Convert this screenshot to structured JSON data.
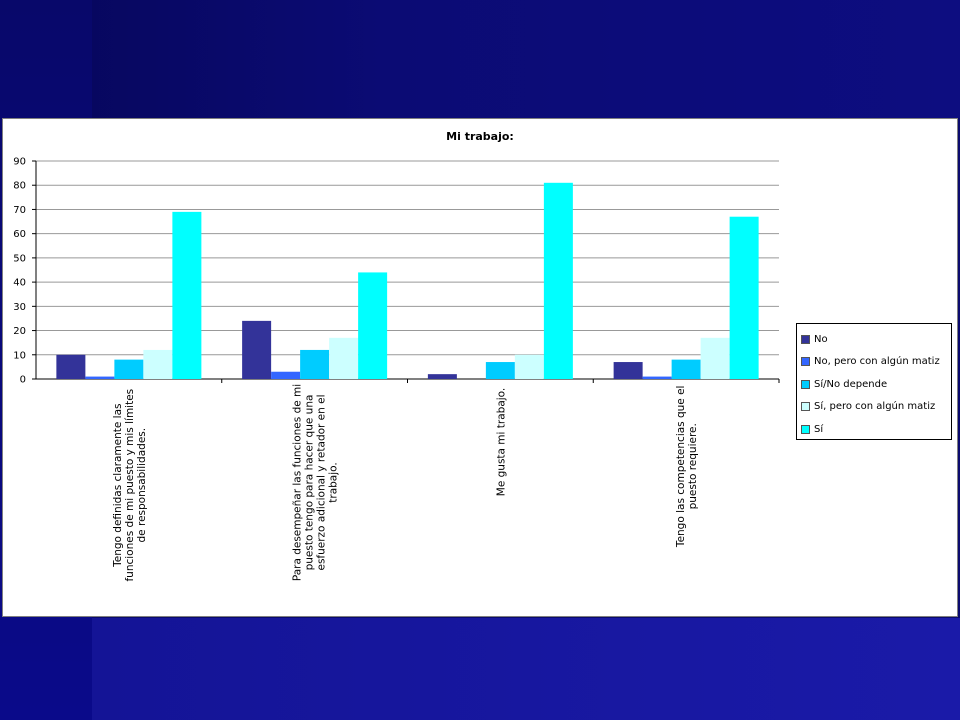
{
  "colors": {
    "no": "#333399",
    "no_matiz": "#3366ff",
    "si_no_depende": "#00ccff",
    "si_matiz": "#ccffff",
    "si": "#00ffff",
    "grid": "#999999"
  },
  "chart_data": {
    "type": "bar",
    "title": "Mi trabajo:",
    "categories": [
      "Tengo definidas claramente las funciones de mi puesto y mis límites de responsabilidades.",
      "Para desempeñar las funciones de mi puesto tengo para hacer que una esfuerzo adicional y retador en el trabajo.",
      "Me gusta mi trabajo.",
      "Tengo las competencias que el puesto requiere."
    ],
    "category_label_lines": [
      [
        "Tengo definidas claramente las",
        "funciones de mi puesto y mis límites",
        "de responsabilidades."
      ],
      [
        "Para desempeñar las funciones de mi",
        "puesto tengo para hacer que una",
        "esfuerzo adicional y retador en el",
        "trabajo."
      ],
      [
        "Me gusta mi trabajo."
      ],
      [
        "Tengo las competencias que el",
        "puesto requiere."
      ]
    ],
    "series": [
      {
        "name": "No",
        "values": [
          10,
          24,
          2,
          7
        ]
      },
      {
        "name": "No, pero con algún matiz",
        "values": [
          1,
          3,
          0,
          1
        ]
      },
      {
        "name": "Sí/No depende",
        "values": [
          8,
          12,
          7,
          8
        ]
      },
      {
        "name": "Sí, pero con algún matiz",
        "values": [
          12,
          17,
          10,
          17
        ]
      },
      {
        "name": "Sí",
        "values": [
          69,
          44,
          81,
          67
        ]
      }
    ],
    "ylim": [
      0,
      90
    ],
    "yticks": [
      0,
      10,
      20,
      30,
      40,
      50,
      60,
      70,
      80,
      90
    ],
    "grid": true,
    "legend_position": "right"
  }
}
